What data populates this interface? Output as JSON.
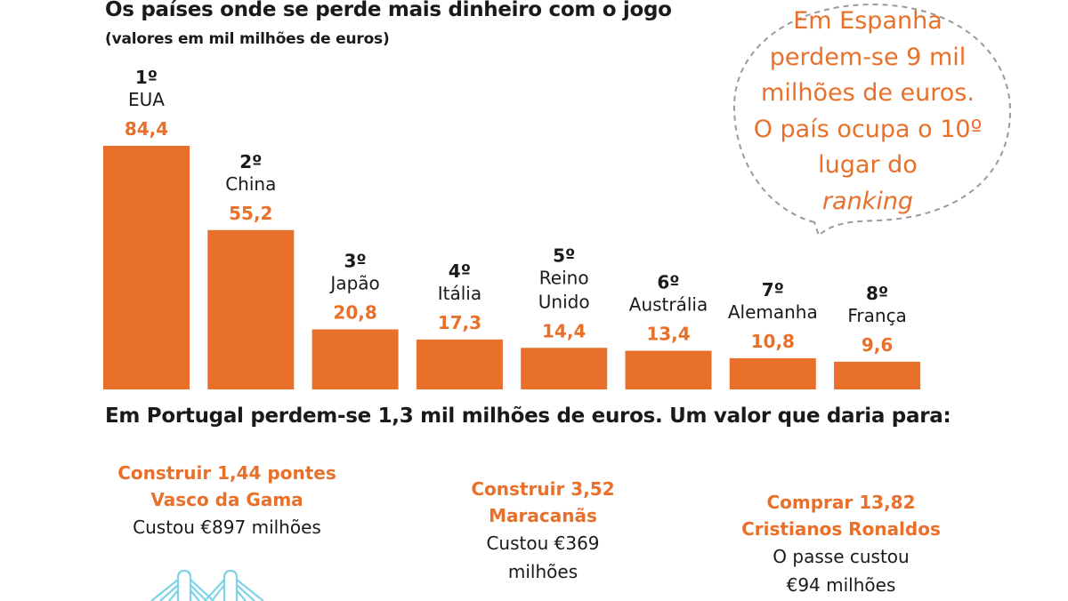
{
  "header": {
    "title": "Os países onde se perde mais dinheiro com o jogo",
    "subtitle": "(valores em mil milhões de euros)"
  },
  "colors": {
    "accent": "#e8702a",
    "text": "#1a1a1a",
    "bridge_icon": "#7dd3e8",
    "callout_border": "#9a9a9a"
  },
  "chart_data": {
    "type": "bar",
    "title": "Os países onde se perde mais dinheiro com o jogo",
    "subtitle": "(valores em mil milhões de euros)",
    "categories": [
      "EUA",
      "China",
      "Japão",
      "Itália",
      "Reino Unido",
      "Austrália",
      "Alemanha",
      "França"
    ],
    "ranks": [
      "1º",
      "2º",
      "3º",
      "4º",
      "5º",
      "6º",
      "7º",
      "8º"
    ],
    "values": [
      84.4,
      55.2,
      20.8,
      17.3,
      14.4,
      13.4,
      10.8,
      9.6
    ],
    "value_labels": [
      "84,4",
      "55,2",
      "20,8",
      "17,3",
      "14,4",
      "13,4",
      "10,8",
      "9,6"
    ],
    "ylim": [
      0,
      84.4
    ],
    "grid": false,
    "legend": false,
    "bar_color": "#e8702a"
  },
  "callout": {
    "lines": [
      "Em Espanha",
      "perdem-se 9 mil",
      "milhões de euros.",
      "O país ocupa o 10º",
      "lugar do"
    ],
    "italic_word": "ranking"
  },
  "portugal": {
    "headline": "Em Portugal perdem-se 1,3 mil milhões de euros. Um valor que daria para:"
  },
  "comparisons": [
    {
      "headline_lines": [
        "Construir 1,44 pontes",
        "Vasco da Gama"
      ],
      "cost_lines": [
        "Custou €897 milhões"
      ]
    },
    {
      "headline_lines": [
        "Construir 3,52",
        "Maracanãs"
      ],
      "cost_lines": [
        "Custou €369",
        "milhões"
      ]
    },
    {
      "headline_lines": [
        "Comprar 13,82",
        "Cristianos Ronaldos"
      ],
      "cost_lines": [
        "O passe custou",
        "€94 milhões"
      ]
    }
  ]
}
